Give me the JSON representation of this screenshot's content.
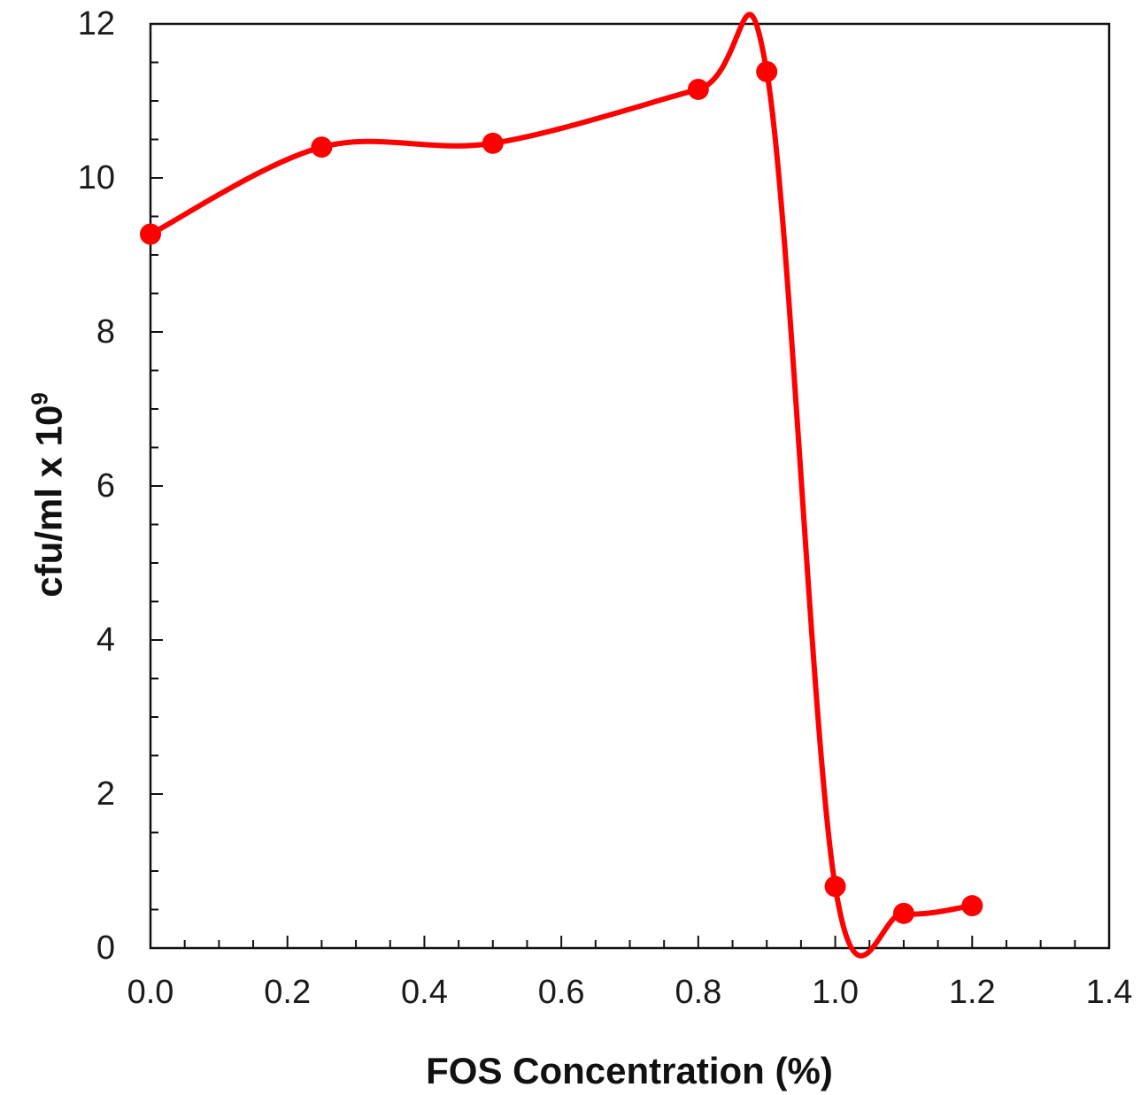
{
  "chart_data": {
    "type": "line",
    "title": "",
    "xlabel": "FOS Concentration (%)",
    "ylabel": "cfu/ml x 10",
    "ylabel_superscript": "9",
    "xlim": [
      0,
      1.4
    ],
    "ylim": [
      0,
      12
    ],
    "x_ticks": [
      "0.0",
      "0.2",
      "0.4",
      "0.6",
      "0.8",
      "1.0",
      "1.2",
      "1.4"
    ],
    "y_ticks": [
      "0",
      "2",
      "4",
      "6",
      "8",
      "10",
      "12"
    ],
    "series": [
      {
        "name": "cfu",
        "color": "#ff0000",
        "x": [
          0.0,
          0.25,
          0.5,
          0.8,
          0.9,
          1.0,
          1.1,
          1.2
        ],
        "y": [
          9.27,
          10.4,
          10.45,
          11.15,
          11.38,
          0.8,
          0.45,
          0.55
        ]
      }
    ],
    "grid": false,
    "legend": "none"
  }
}
